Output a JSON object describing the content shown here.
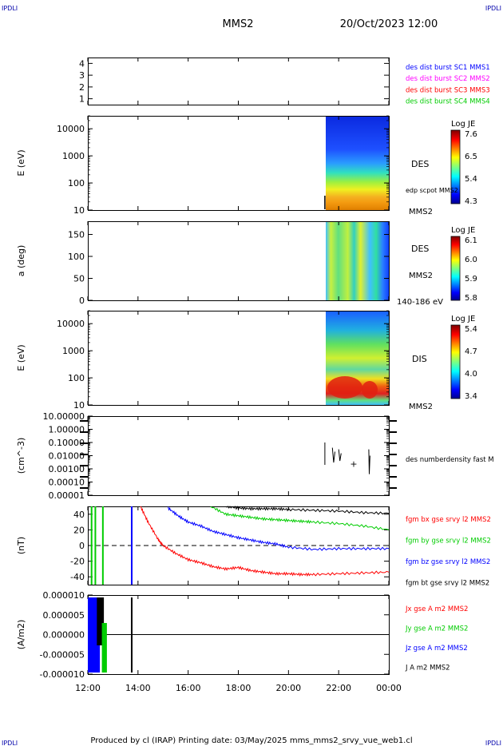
{
  "header": {
    "corner_tl": "IPDLI",
    "corner_tr": "IPDLI",
    "corner_bl": "IPDLI",
    "corner_br": "IPDLI",
    "title": "MMS2",
    "datetime": "20/Oct/2023 12:00"
  },
  "footer": {
    "text": "Produced by cl (IRAP)   Printing date: 03/May/2025   mms_mms2_srvy_vue_web1.cl"
  },
  "chart_data": [
    {
      "type": "line",
      "panel": "availability",
      "ylim": [
        0.5,
        4.5
      ],
      "ytick_labels": [
        "4",
        "3",
        "2",
        "1"
      ],
      "legend": [
        {
          "name": "des dist burst SC1 MMS1",
          "color": "#0000ff"
        },
        {
          "name": "des dist burst SC2 MMS2",
          "color": "#ff00ff"
        },
        {
          "name": "des dist burst SC3 MMS3",
          "color": "#ff0000"
        },
        {
          "name": "des dist burst SC4 MMS4",
          "color": "#00cc00"
        }
      ]
    },
    {
      "type": "heatmap",
      "panel": "des-energy",
      "ylabel": "E (eV)",
      "yscale": "log",
      "ylim": [
        10,
        30000
      ],
      "ytick_labels": [
        "10000",
        "1000",
        "100",
        "10"
      ],
      "data_start_hour": 21.45,
      "labels": [
        "DES",
        "edp scpot MMS2",
        "MMS2"
      ],
      "colorbar": {
        "title": "Log JE",
        "ticks": [
          "7.6",
          "6.5",
          "5.4",
          "4.3"
        ],
        "range": [
          4.3,
          7.6
        ]
      }
    },
    {
      "type": "heatmap",
      "panel": "des-pitch-angle",
      "ylabel": "a (deg)",
      "ylim": [
        0,
        180
      ],
      "ytick_labels": [
        "150",
        "100",
        "50",
        "0"
      ],
      "data_start_hour": 21.45,
      "labels": [
        "DES",
        "MMS2",
        "140-186 eV"
      ],
      "colorbar": {
        "title": "Log JE",
        "ticks": [
          "6.1",
          "6.0",
          "5.9",
          "5.8"
        ],
        "range": [
          5.8,
          6.1
        ]
      }
    },
    {
      "type": "heatmap",
      "panel": "dis-energy",
      "ylabel": "E (eV)",
      "yscale": "log",
      "ylim": [
        10,
        30000
      ],
      "ytick_labels": [
        "10000",
        "1000",
        "100",
        "10"
      ],
      "data_start_hour": 21.45,
      "labels": [
        "DIS",
        "MMS2"
      ],
      "colorbar": {
        "title": "Log JE",
        "ticks": [
          "5.4",
          "4.7",
          "4.0",
          "3.4"
        ],
        "range": [
          3.4,
          5.4
        ]
      }
    },
    {
      "type": "line",
      "panel": "density",
      "ylabel": "(cm^-3)",
      "yscale": "log",
      "ylim": [
        0.0001,
        10
      ],
      "ytick_labels": [
        "10.00000",
        "1.00000",
        "0.10000",
        "0.01000",
        "0.00100",
        "0.00010",
        "0.00001"
      ],
      "series": [
        {
          "name": "des numberdensity fast M",
          "color": "#000000",
          "segments": [
            {
              "x": [
                21.45,
                21.45
              ],
              "y": [
                0.1,
                0.002
              ]
            },
            {
              "x": [
                21.75,
                21.8,
                21.85
              ],
              "y": [
                0.04,
                0.003,
                0.02
              ]
            },
            {
              "x": [
                22.0,
                22.05,
                22.1
              ],
              "y": [
                0.03,
                0.004,
                0.015
              ]
            },
            {
              "x": [
                23.2,
                23.22,
                23.25
              ],
              "y": [
                0.03,
                0.0004,
                0.01
              ]
            }
          ],
          "points": [
            {
              "x": 22.6,
              "y": 0.0025
            }
          ]
        }
      ]
    },
    {
      "type": "line",
      "panel": "magnetic-field",
      "ylabel": "(nT)",
      "ylim": [
        -50,
        50
      ],
      "ytick_labels": [
        "40",
        "20",
        "0",
        "-20",
        "-40"
      ],
      "series": [
        {
          "name": "fgm bx gse srvy l2 MMS2",
          "color": "#ff0000",
          "x": [
            14.1,
            14.4,
            14.8,
            15.0,
            15.5,
            16.0,
            16.5,
            17.0,
            17.5,
            18.0,
            18.5,
            19.0,
            19.5,
            20.0,
            20.5,
            21.0,
            22.0,
            23.0,
            24.0
          ],
          "y": [
            50,
            30,
            8,
            0,
            -10,
            -18,
            -22,
            -27,
            -30,
            -28,
            -32,
            -34,
            -36,
            -36,
            -37,
            -37,
            -36,
            -35,
            -34
          ]
        },
        {
          "name": "fgm by gse srvy l2 MMS2",
          "color": "#00cc00",
          "x": [
            16.9,
            17.5,
            18.0,
            18.5,
            19.0,
            19.5,
            20.0,
            20.5,
            21.0,
            22.0,
            23.0,
            24.0
          ],
          "y": [
            50,
            40,
            38,
            36,
            34,
            33,
            32,
            31,
            30,
            28,
            25,
            20
          ]
        },
        {
          "name": "fgm bz gse srvy l2 MMS2",
          "color": "#0000ff",
          "x": [
            15.2,
            15.6,
            16.0,
            16.5,
            17.0,
            17.5,
            18.0,
            18.5,
            19.0,
            19.5,
            20.0,
            21.0,
            22.0,
            23.0,
            24.0
          ],
          "y": [
            48,
            38,
            30,
            25,
            18,
            14,
            10,
            7,
            4,
            2,
            -2,
            -5,
            -4,
            -4,
            -4
          ]
        },
        {
          "name": "fgm bt gse srvy l2 MMS2",
          "color": "#000000",
          "x": [
            17.5,
            18.0,
            18.5,
            19.0,
            19.5,
            20.0,
            21.0,
            22.0,
            23.0,
            24.0
          ],
          "y": [
            50,
            48,
            47,
            47,
            47,
            46,
            45,
            44,
            42,
            41
          ]
        }
      ],
      "spikes": [
        {
          "x": 12.15,
          "color": "#00cc00"
        },
        {
          "x": 12.3,
          "color": "#00cc00"
        },
        {
          "x": 12.6,
          "color": "#00cc00"
        },
        {
          "x": 13.75,
          "color": "#0000ff"
        }
      ],
      "zero_line": true
    },
    {
      "type": "line",
      "panel": "current-density",
      "ylabel": "(A/m2)",
      "ylim": [
        -1e-05,
        1e-05
      ],
      "ytick_labels": [
        "0.000010",
        "0.000005",
        "0.000000",
        "-0.000005",
        "-0.000010"
      ],
      "series": [
        {
          "name": "Jx gse A m2 MMS2",
          "color": "#ff0000"
        },
        {
          "name": "Jy gse A m2 MMS2",
          "color": "#00cc00"
        },
        {
          "name": "Jz gse A m2 MMS2",
          "color": "#0000ff"
        },
        {
          "name": "J A m2 MMS2",
          "color": "#000000"
        }
      ],
      "spikes": [
        {
          "x": 13.75,
          "color": "#000000"
        }
      ],
      "active_interval": [
        12.0,
        12.8
      ]
    }
  ],
  "x_axis": {
    "xlim": [
      12,
      24
    ],
    "tick_labels": [
      "12:00",
      "14:00",
      "16:00",
      "18:00",
      "20:00",
      "22:00",
      "00:00"
    ]
  }
}
